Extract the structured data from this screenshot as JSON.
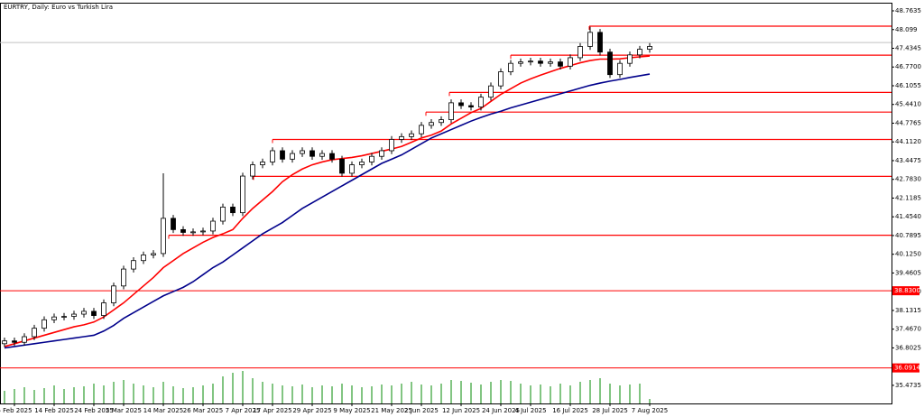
{
  "chart_data": {
    "type": "candlestick",
    "title": "EURTRY, Daily:  Euro vs Turkish Lira",
    "categories": [
      null,
      "5 Feb 2025",
      null,
      null,
      null,
      "14 Feb 2025",
      null,
      null,
      null,
      "24 Feb 2025",
      null,
      null,
      "5 Mar 2025",
      null,
      null,
      null,
      "14 Mar 2025",
      null,
      null,
      null,
      "26 Mar 2025",
      null,
      null,
      null,
      "7 Apr 2025",
      null,
      null,
      "17 Apr 2025",
      null,
      null,
      null,
      "29 Apr 2025",
      null,
      null,
      null,
      "9 May 2025",
      null,
      null,
      null,
      "21 May 2025",
      null,
      null,
      "2 Jun 2025",
      null,
      null,
      null,
      "12 Jun 2025",
      null,
      null,
      null,
      "24 Jun 2025",
      null,
      null,
      "4 Jul 2025",
      null,
      null,
      null,
      "16 Jul 2025",
      null,
      null,
      null,
      "28 Jul 2025",
      null,
      null,
      null,
      "7 Aug 2025"
    ],
    "open": [
      36.95,
      37.05,
      37.0,
      37.2,
      37.5,
      37.8,
      37.9,
      37.92,
      38.0,
      38.1,
      37.95,
      38.4,
      39.0,
      39.6,
      39.9,
      40.1,
      40.15,
      41.4,
      41.0,
      40.9,
      40.92,
      40.95,
      41.3,
      41.8,
      41.6,
      42.9,
      43.3,
      43.4,
      43.8,
      43.5,
      43.7,
      43.8,
      43.6,
      43.7,
      43.5,
      43.0,
      43.3,
      43.4,
      43.6,
      43.8,
      44.2,
      44.3,
      44.4,
      44.7,
      44.8,
      44.9,
      45.5,
      45.4,
      45.35,
      45.7,
      46.1,
      46.6,
      46.9,
      46.95,
      46.98,
      46.9,
      46.95,
      46.8,
      47.1,
      47.5,
      48.0,
      47.3,
      46.5,
      46.9,
      47.2,
      47.4
    ],
    "high": [
      37.17,
      37.17,
      37.32,
      37.62,
      37.92,
      38.02,
      38.04,
      38.12,
      38.22,
      38.22,
      38.52,
      39.12,
      39.72,
      40.02,
      40.22,
      40.27,
      43.0,
      41.52,
      41.12,
      41.04,
      41.07,
      41.42,
      41.92,
      41.92,
      43.02,
      43.42,
      43.52,
      43.92,
      43.92,
      43.82,
      43.92,
      43.92,
      43.82,
      43.82,
      43.62,
      43.42,
      43.52,
      43.72,
      43.92,
      44.32,
      44.42,
      44.52,
      44.82,
      44.92,
      45.02,
      45.62,
      45.62,
      45.52,
      45.82,
      46.22,
      46.72,
      47.02,
      47.07,
      47.1,
      47.1,
      47.07,
      47.07,
      47.22,
      47.62,
      48.2,
      48.12,
      47.42,
      47.02,
      47.32,
      47.52,
      47.62
    ],
    "low": [
      36.83,
      36.88,
      36.88,
      37.08,
      37.38,
      37.68,
      37.78,
      37.8,
      37.88,
      37.83,
      37.83,
      38.28,
      38.88,
      39.48,
      39.78,
      39.98,
      40.03,
      40.88,
      40.78,
      40.78,
      40.8,
      40.83,
      41.18,
      41.48,
      41.48,
      42.78,
      43.18,
      43.28,
      43.38,
      43.38,
      43.58,
      43.48,
      43.48,
      43.38,
      42.88,
      42.88,
      43.18,
      43.28,
      43.48,
      43.68,
      44.08,
      44.18,
      44.28,
      44.58,
      44.68,
      44.78,
      45.28,
      45.23,
      45.23,
      45.58,
      45.98,
      46.48,
      46.78,
      46.83,
      46.78,
      46.78,
      46.68,
      46.68,
      46.98,
      47.38,
      47.18,
      46.38,
      46.38,
      46.78,
      47.08,
      47.28
    ],
    "close": [
      37.05,
      37.0,
      37.2,
      37.5,
      37.8,
      37.9,
      37.92,
      38.0,
      38.1,
      37.95,
      38.4,
      39.0,
      39.6,
      39.9,
      40.1,
      40.15,
      41.4,
      41.0,
      40.9,
      40.92,
      40.95,
      41.3,
      41.8,
      41.6,
      42.9,
      43.3,
      43.4,
      43.8,
      43.5,
      43.7,
      43.8,
      43.6,
      43.7,
      43.5,
      43.0,
      43.3,
      43.4,
      43.6,
      43.8,
      44.2,
      44.3,
      44.4,
      44.7,
      44.8,
      44.9,
      45.5,
      45.4,
      45.35,
      45.7,
      46.1,
      46.6,
      46.9,
      46.95,
      46.98,
      46.9,
      46.95,
      46.8,
      47.1,
      47.5,
      48.0,
      47.3,
      46.5,
      46.9,
      47.2,
      47.4,
      47.5
    ],
    "series": [
      {
        "color": "#ff0000",
        "values": [
          36.85,
          36.95,
          37.05,
          37.15,
          37.25,
          37.35,
          37.45,
          37.55,
          37.62,
          37.72,
          37.9,
          38.15,
          38.4,
          38.7,
          39.0,
          39.3,
          39.65,
          39.9,
          40.15,
          40.35,
          40.55,
          40.72,
          40.85,
          41.0,
          41.4,
          41.75,
          42.05,
          42.35,
          42.7,
          42.95,
          43.15,
          43.3,
          43.4,
          43.48,
          43.52,
          43.56,
          43.62,
          43.7,
          43.78,
          43.86,
          43.95,
          44.1,
          44.25,
          44.35,
          44.5,
          44.75,
          44.95,
          45.15,
          45.3,
          45.55,
          45.8,
          46.0,
          46.2,
          46.35,
          46.48,
          46.6,
          46.72,
          46.82,
          46.92,
          47.0,
          47.05,
          47.05,
          47.06,
          47.1,
          47.13,
          47.16
        ]
      },
      {
        "color": "#00008b",
        "values": [
          36.8,
          36.85,
          36.9,
          36.95,
          37.0,
          37.05,
          37.1,
          37.15,
          37.2,
          37.25,
          37.4,
          37.6,
          37.85,
          38.05,
          38.25,
          38.45,
          38.65,
          38.8,
          38.95,
          39.15,
          39.4,
          39.65,
          39.85,
          40.1,
          40.35,
          40.6,
          40.85,
          41.05,
          41.25,
          41.5,
          41.75,
          41.95,
          42.15,
          42.35,
          42.55,
          42.75,
          42.95,
          43.15,
          43.35,
          43.5,
          43.65,
          43.85,
          44.05,
          44.25,
          44.4,
          44.55,
          44.7,
          44.85,
          44.98,
          45.1,
          45.2,
          45.32,
          45.42,
          45.52,
          45.62,
          45.72,
          45.82,
          45.92,
          46.02,
          46.12,
          46.2,
          46.27,
          46.33,
          46.4,
          46.46,
          46.52
        ]
      }
    ],
    "volume": [
      14,
      16,
      18,
      15,
      17,
      20,
      16,
      18,
      19,
      22,
      20,
      24,
      26,
      22,
      20,
      18,
      24,
      19,
      17,
      18,
      20,
      22,
      30,
      34,
      36,
      28,
      24,
      22,
      20,
      19,
      21,
      18,
      20,
      19,
      22,
      20,
      18,
      19,
      21,
      20,
      22,
      24,
      21,
      20,
      22,
      26,
      25,
      23,
      21,
      24,
      26,
      25,
      22,
      20,
      21,
      19,
      22,
      20,
      24,
      26,
      28,
      22,
      20,
      21,
      22,
      5
    ],
    "levels": [
      48.22,
      47.19,
      45.87,
      45.17,
      44.2,
      42.89,
      40.8
    ],
    "labeled_levels": [
      {
        "value": 38.83,
        "label": "38.8300"
      },
      {
        "value": 36.0914,
        "label": "36.0914"
      }
    ],
    "price_line": 47.64,
    "ylim": [
      34.83,
      49.02
    ],
    "yticks": [
      48.7635,
      48.099,
      {
        "value": 47.4345,
        "label": "47.4345"
      },
      {
        "value": 46.77,
        "label": "46.7700"
      },
      46.1055,
      {
        "value": 45.441,
        "label": "45.4410"
      },
      44.7765,
      {
        "value": 44.112,
        "label": "44.1120"
      },
      43.4475,
      {
        "value": 42.783,
        "label": "42.7830"
      },
      42.1185,
      {
        "value": 41.454,
        "label": "41.4540"
      },
      40.7895,
      {
        "value": 40.125,
        "label": "40.1250"
      },
      39.4605,
      {
        "value": 38.796,
        "label": "38.7960"
      },
      38.1315,
      {
        "value": 37.467,
        "label": "37.4670"
      },
      36.8025,
      35.4735
    ]
  }
}
